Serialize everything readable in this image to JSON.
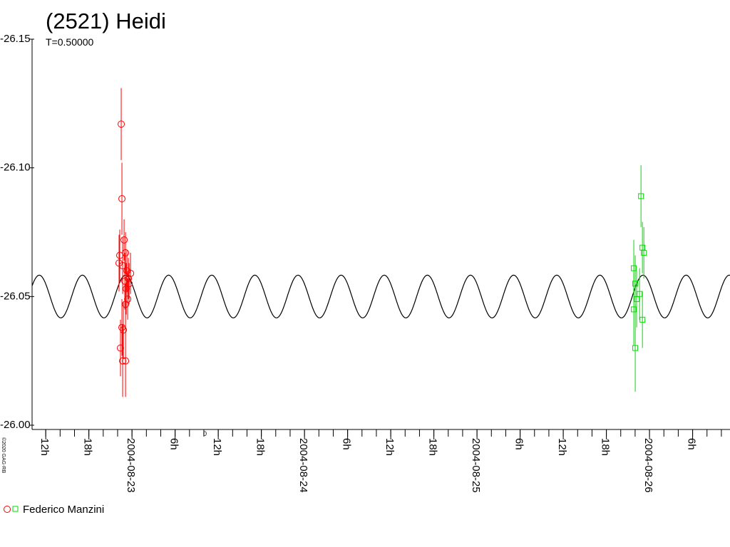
{
  "chart_data": {
    "type": "lightcurve",
    "title": "(2521) Heidi",
    "subtitle": "T=0.50000",
    "copyright": "©2020 GAG-RB",
    "axis_note": "0",
    "legend": {
      "label": "Federico Manzini",
      "corner": "bottom-left"
    },
    "xlim": [
      "2004-08-22T10:06",
      "2004-08-26T11:12"
    ],
    "xtick_minor_step_hours": 2,
    "xticks": [
      {
        "value": "2004-08-22T12:00",
        "label": "12h"
      },
      {
        "value": "2004-08-22T18:00",
        "label": "18h"
      },
      {
        "value": "2004-08-23T00:00",
        "label": "2004-08-23"
      },
      {
        "value": "2004-08-23T06:00",
        "label": "6h"
      },
      {
        "value": "2004-08-23T12:00",
        "label": "12h"
      },
      {
        "value": "2004-08-23T18:00",
        "label": "18h"
      },
      {
        "value": "2004-08-24T00:00",
        "label": "2004-08-24"
      },
      {
        "value": "2004-08-24T06:00",
        "label": "6h"
      },
      {
        "value": "2004-08-24T12:00",
        "label": "12h"
      },
      {
        "value": "2004-08-24T18:00",
        "label": "18h"
      },
      {
        "value": "2004-08-25T00:00",
        "label": "2004-08-25"
      },
      {
        "value": "2004-08-25T06:00",
        "label": "6h"
      },
      {
        "value": "2004-08-25T12:00",
        "label": "12h"
      },
      {
        "value": "2004-08-25T18:00",
        "label": "18h"
      },
      {
        "value": "2004-08-26T00:00",
        "label": "2004-08-26"
      },
      {
        "value": "2004-08-26T06:00",
        "label": "6h"
      }
    ],
    "ylim": [
      -26.0,
      -26.15
    ],
    "yticks": [
      {
        "value": -26.15,
        "label": "-26.15"
      },
      {
        "value": -26.1,
        "label": "-26.10"
      },
      {
        "value": -26.05,
        "label": "-26.05"
      },
      {
        "value": -26.0,
        "label": "-26.00"
      }
    ],
    "model": {
      "mean": -26.05,
      "amplitude": 0.0083,
      "period_hours": 6,
      "peak_time": "2004-08-22T11:06",
      "color": "#000000"
    },
    "series": [
      {
        "color": "#ff0000",
        "marker": "circle",
        "x": [
          "2004-08-22T22:30",
          "2004-08-22T22:36",
          "2004-08-22T22:54",
          "2004-08-22T22:18",
          "2004-08-22T22:12",
          "2004-08-22T22:42",
          "2004-08-22T23:06",
          "2004-08-22T23:18",
          "2004-08-22T23:48",
          "2004-08-22T23:30",
          "2004-08-22T23:00",
          "2004-08-22T23:12",
          "2004-08-22T23:06",
          "2004-08-22T22:36",
          "2004-08-22T22:48",
          "2004-08-22T22:24",
          "2004-08-22T22:42",
          "2004-08-22T23:06",
          "2004-08-22T23:24",
          "2004-08-22T23:36"
        ],
        "values": [
          -26.117,
          -26.088,
          -26.072,
          -26.066,
          -26.063,
          -26.062,
          -26.067,
          -26.06,
          -26.059,
          -26.057,
          -26.056,
          -26.053,
          -26.047,
          -26.038,
          -26.037,
          -26.03,
          -26.025,
          -26.025,
          -26.049,
          -26.055
        ],
        "errors": [
          0.014,
          0.014,
          0.008,
          0.01,
          0.011,
          0.011,
          0.008,
          0.008,
          0.008,
          0.008,
          0.011,
          0.01,
          0.008,
          0.011,
          0.011,
          0.011,
          0.014,
          0.014,
          0.008,
          0.008
        ]
      },
      {
        "color": "#00dd00",
        "marker": "square",
        "x": [
          "2004-08-25T22:49",
          "2004-08-25T23:01",
          "2004-08-25T23:13",
          "2004-08-25T21:49",
          "2004-08-25T22:01",
          "2004-08-25T22:37",
          "2004-08-25T21:49",
          "2004-08-25T23:01",
          "2004-08-25T22:01",
          "2004-08-25T22:13"
        ],
        "values": [
          -26.089,
          -26.069,
          -26.067,
          -26.061,
          -26.055,
          -26.051,
          -26.045,
          -26.041,
          -26.03,
          -26.049
        ],
        "errors": [
          0.012,
          0.01,
          0.01,
          0.011,
          0.011,
          0.01,
          0.014,
          0.011,
          0.017,
          0.011
        ]
      }
    ]
  }
}
